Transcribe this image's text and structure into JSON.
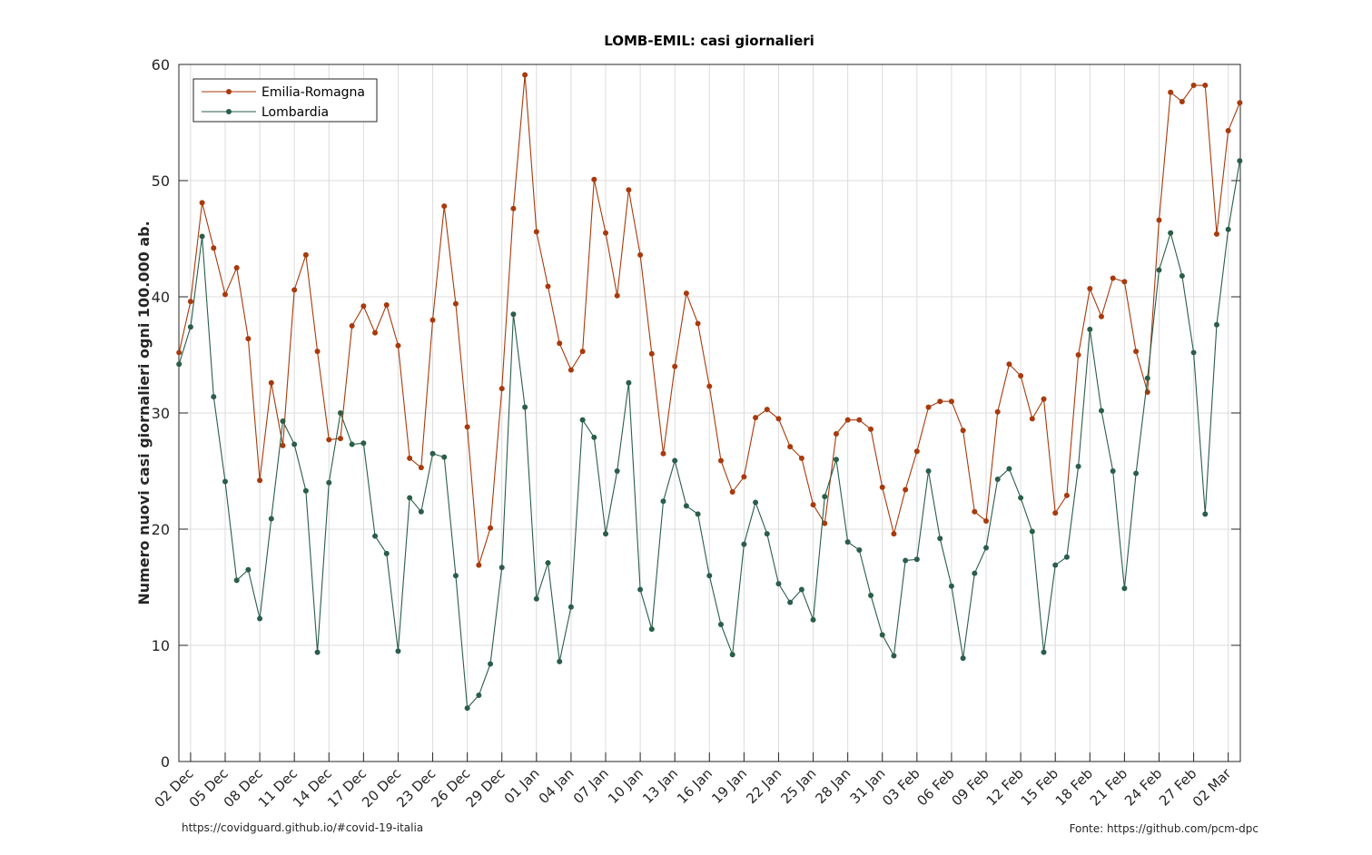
{
  "footer": {
    "left": "https://covidguard.github.io/#covid-19-italia",
    "right": "Fonte: https://github.com/pcm-dpc"
  },
  "chart_data": {
    "type": "line",
    "title": "LOMB-EMIL: casi giornalieri",
    "xlabel": "",
    "ylabel": "Numero nuovi casi giornalieri ogni 100.000 ab.",
    "ylim": [
      0,
      60
    ],
    "yticks": [
      0,
      10,
      20,
      30,
      40,
      50,
      60
    ],
    "grid": true,
    "legend_position": "top-left",
    "x_start_date": "2020-12-02",
    "x": [
      "01 Dec",
      "02 Dec",
      "03 Dec",
      "04 Dec",
      "05 Dec",
      "06 Dec",
      "07 Dec",
      "08 Dec",
      "09 Dec",
      "10 Dec",
      "11 Dec",
      "12 Dec",
      "13 Dec",
      "14 Dec",
      "15 Dec",
      "16 Dec",
      "17 Dec",
      "18 Dec",
      "19 Dec",
      "20 Dec",
      "21 Dec",
      "22 Dec",
      "23 Dec",
      "24 Dec",
      "25 Dec",
      "26 Dec",
      "27 Dec",
      "28 Dec",
      "29 Dec",
      "30 Dec",
      "31 Dec",
      "01 Jan",
      "02 Jan",
      "03 Jan",
      "04 Jan",
      "05 Jan",
      "06 Jan",
      "07 Jan",
      "08 Jan",
      "09 Jan",
      "10 Jan",
      "11 Jan",
      "12 Jan",
      "13 Jan",
      "14 Jan",
      "15 Jan",
      "16 Jan",
      "17 Jan",
      "18 Jan",
      "19 Jan",
      "20 Jan",
      "21 Jan",
      "22 Jan",
      "23 Jan",
      "24 Jan",
      "25 Jan",
      "26 Jan",
      "27 Jan",
      "28 Jan",
      "29 Jan",
      "30 Jan",
      "31 Jan",
      "01 Feb",
      "02 Feb",
      "03 Feb",
      "04 Feb",
      "05 Feb",
      "06 Feb",
      "07 Feb",
      "08 Feb",
      "09 Feb",
      "10 Feb",
      "11 Feb",
      "12 Feb",
      "13 Feb",
      "14 Feb",
      "15 Feb",
      "16 Feb",
      "17 Feb",
      "18 Feb",
      "19 Feb",
      "20 Feb",
      "21 Feb",
      "22 Feb",
      "23 Feb",
      "24 Feb",
      "25 Feb",
      "26 Feb",
      "27 Feb",
      "28 Feb",
      "01 Mar",
      "02 Mar",
      "03 Mar"
    ],
    "x_tick_labels": [
      "02 Dec",
      "05 Dec",
      "08 Dec",
      "11 Dec",
      "14 Dec",
      "17 Dec",
      "20 Dec",
      "23 Dec",
      "26 Dec",
      "29 Dec",
      "01 Jan",
      "04 Jan",
      "07 Jan",
      "10 Jan",
      "13 Jan",
      "16 Jan",
      "19 Jan",
      "22 Jan",
      "25 Jan",
      "28 Jan",
      "31 Jan",
      "03 Feb",
      "06 Feb",
      "09 Feb",
      "12 Feb",
      "15 Feb",
      "18 Feb",
      "21 Feb",
      "24 Feb",
      "27 Feb",
      "02 Mar"
    ],
    "series": [
      {
        "name": "Emilia-Romagna",
        "color": "#a83a0c",
        "values": [
          35.2,
          39.6,
          48.1,
          44.2,
          40.2,
          42.5,
          36.4,
          24.2,
          32.6,
          27.2,
          40.6,
          43.6,
          35.3,
          27.7,
          27.8,
          37.5,
          39.2,
          36.9,
          39.3,
          35.8,
          26.1,
          25.3,
          38.0,
          47.8,
          39.4,
          28.8,
          16.9,
          20.1,
          32.1,
          47.6,
          59.1,
          45.6,
          40.9,
          36.0,
          33.7,
          35.3,
          50.1,
          45.5,
          40.1,
          49.2,
          43.6,
          35.1,
          26.5,
          34.0,
          40.3,
          37.7,
          32.3,
          25.9,
          23.2,
          24.5,
          29.6,
          30.3,
          29.5,
          27.1,
          26.1,
          22.1,
          20.5,
          28.2,
          29.4,
          29.4,
          28.6,
          23.6,
          19.6,
          23.4,
          26.7,
          30.5,
          31.0,
          31.0,
          28.5,
          21.5,
          20.7,
          30.1,
          34.2,
          33.2,
          29.5,
          31.2,
          21.4,
          22.9,
          35.0,
          40.7,
          38.3,
          41.6,
          41.3,
          35.3,
          31.8,
          46.6,
          57.6,
          56.8,
          58.2,
          58.2,
          45.4,
          54.3,
          56.7
        ]
      },
      {
        "name": "Lombardia",
        "color": "#2a5e48",
        "values": [
          34.2,
          37.4,
          45.2,
          31.4,
          24.1,
          15.6,
          16.5,
          12.3,
          20.9,
          29.3,
          27.3,
          23.3,
          9.4,
          24.0,
          30.0,
          27.3,
          27.4,
          19.4,
          17.9,
          9.5,
          22.7,
          21.5,
          26.5,
          26.2,
          16.0,
          4.6,
          5.7,
          8.4,
          16.7,
          38.5,
          30.5,
          14.0,
          17.1,
          8.6,
          13.3,
          29.4,
          27.9,
          19.6,
          25.0,
          32.6,
          14.8,
          11.4,
          22.4,
          25.9,
          22.0,
          21.3,
          16.0,
          11.8,
          9.2,
          18.7,
          22.3,
          19.6,
          15.3,
          13.7,
          14.8,
          12.2,
          22.8,
          26.0,
          18.9,
          18.2,
          14.3,
          10.9,
          9.1,
          17.3,
          17.4,
          25.0,
          19.2,
          15.1,
          8.9,
          16.2,
          18.4,
          24.3,
          25.2,
          22.7,
          19.8,
          9.4,
          16.9,
          17.6,
          25.4,
          37.2,
          30.2,
          25.0,
          14.9,
          24.8,
          33.0,
          42.3,
          45.5,
          41.8,
          35.2,
          21.3,
          37.6,
          45.8,
          51.7
        ]
      }
    ]
  }
}
